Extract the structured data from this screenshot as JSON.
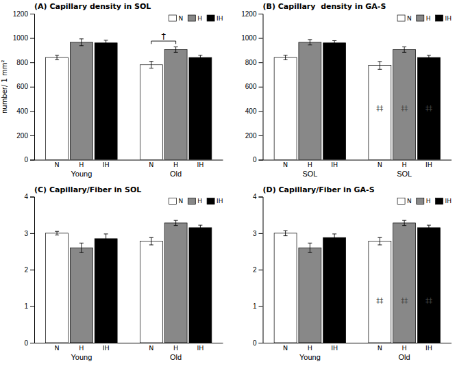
{
  "chart_data": [
    {
      "type": "bar",
      "title": "(A) Capillary density in SOL",
      "ylabel": "number/ 1 mm²",
      "categories": [
        "Young",
        "Old"
      ],
      "series": [
        {
          "name": "N",
          "color": "white",
          "values": [
            840,
            780
          ],
          "errors": [
            18,
            28
          ]
        },
        {
          "name": "H",
          "color": "#888888",
          "values": [
            965,
            905
          ],
          "errors": [
            28,
            22
          ]
        },
        {
          "name": "IH",
          "color": "black",
          "values": [
            960,
            840
          ],
          "errors": [
            22,
            18
          ]
        }
      ],
      "ylim": [
        0,
        1200
      ],
      "yticks": [
        0,
        200,
        400,
        600,
        800,
        1000,
        1200
      ],
      "grid": false,
      "legend": "upper right",
      "annotations": [
        {
          "kind": "bracket",
          "text": "†",
          "group": 1,
          "from": 0,
          "to": 1
        }
      ]
    },
    {
      "type": "bar",
      "title": "(B) Capillary  density in GA-S",
      "categories": [
        "SOL",
        "SOL"
      ],
      "series": [
        {
          "name": "N",
          "color": "white",
          "values": [
            840,
            775
          ],
          "errors": [
            18,
            32
          ]
        },
        {
          "name": "H",
          "color": "#888888",
          "values": [
            965,
            905
          ],
          "errors": [
            22,
            22
          ]
        },
        {
          "name": "IH",
          "color": "black",
          "values": [
            960,
            840
          ],
          "errors": [
            18,
            18
          ]
        }
      ],
      "ylim": [
        0,
        1200
      ],
      "yticks": [
        0,
        200,
        400,
        600,
        800,
        1000,
        1200
      ],
      "grid": false,
      "legend": "upper right",
      "annotations": [
        {
          "kind": "text",
          "text": "‡‡",
          "group": 1,
          "series": 0,
          "y": 420
        },
        {
          "kind": "text",
          "text": "‡‡",
          "group": 1,
          "series": 1,
          "y": 420
        },
        {
          "kind": "text",
          "text": "‡‡",
          "group": 1,
          "series": 2,
          "y": 420
        }
      ]
    },
    {
      "type": "bar",
      "title": "(C) Capillary/Fiber in SOL",
      "categories": [
        "Young",
        "Old"
      ],
      "series": [
        {
          "name": "N",
          "color": "white",
          "values": [
            3.0,
            2.78
          ],
          "errors": [
            0.05,
            0.1
          ]
        },
        {
          "name": "H",
          "color": "#888888",
          "values": [
            2.6,
            3.28
          ],
          "errors": [
            0.13,
            0.07
          ]
        },
        {
          "name": "IH",
          "color": "black",
          "values": [
            2.85,
            3.15
          ],
          "errors": [
            0.13,
            0.07
          ]
        }
      ],
      "ylim": [
        0,
        4
      ],
      "yticks": [
        0,
        1,
        2,
        3,
        4
      ],
      "grid": false,
      "legend": "upper right"
    },
    {
      "type": "bar",
      "title": "(D) Capillary/Fiber in GA-S",
      "categories": [
        "Young",
        "Old"
      ],
      "series": [
        {
          "name": "N",
          "color": "white",
          "values": [
            3.0,
            2.78
          ],
          "errors": [
            0.07,
            0.1
          ]
        },
        {
          "name": "H",
          "color": "#888888",
          "values": [
            2.6,
            3.28
          ],
          "errors": [
            0.13,
            0.07
          ]
        },
        {
          "name": "IH",
          "color": "black",
          "values": [
            2.88,
            3.15
          ],
          "errors": [
            0.1,
            0.07
          ]
        }
      ],
      "ylim": [
        0,
        4
      ],
      "yticks": [
        0,
        1,
        2,
        3,
        4
      ],
      "grid": false,
      "legend": "upper right",
      "annotations": [
        {
          "kind": "text",
          "text": "‡‡",
          "group": 1,
          "series": 0,
          "y": 1.15
        },
        {
          "kind": "text",
          "text": "‡‡",
          "group": 1,
          "series": 1,
          "y": 1.15
        },
        {
          "kind": "text",
          "text": "‡‡",
          "group": 1,
          "series": 2,
          "y": 1.15
        }
      ]
    }
  ]
}
